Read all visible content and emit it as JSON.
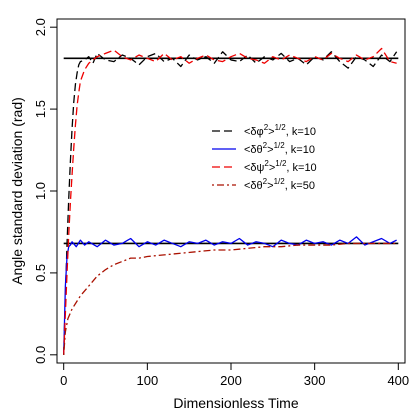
{
  "chart_data": {
    "type": "line",
    "title": "",
    "xlabel": "Dimensionless Time",
    "ylabel": "Angle standard deviation (rad)",
    "xlim": [
      -8,
      408
    ],
    "ylim": [
      -0.05,
      2.05
    ],
    "xticks": [
      0,
      100,
      200,
      300,
      400
    ],
    "yticks": [
      0.0,
      0.5,
      1.0,
      1.5,
      2.0
    ],
    "xtick_labels": [
      "0",
      "100",
      "200",
      "300",
      "400"
    ],
    "ytick_labels": [
      "0.0",
      "0.5",
      "1.0",
      "1.5",
      "2.0"
    ],
    "grid": false,
    "legend_position": "right-middle",
    "reference_lines": [
      {
        "y": 1.81,
        "x_range": [
          0,
          400
        ],
        "color": "#000000"
      },
      {
        "y": 0.68,
        "x_range": [
          0,
          400
        ],
        "color": "#000000"
      }
    ],
    "series": [
      {
        "name_base": "<δφ",
        "name_sup1": "2",
        "name_mid": ">",
        "name_sup2": "1/2",
        "name_tail": ", k=10",
        "color": "#000000",
        "dash": "dashed",
        "x": [
          0,
          2,
          4,
          6,
          8,
          10,
          12,
          14,
          16,
          18,
          20,
          25,
          30,
          35,
          40,
          50,
          60,
          70,
          80,
          90,
          100,
          110,
          120,
          130,
          140,
          150,
          160,
          170,
          180,
          190,
          200,
          210,
          220,
          230,
          240,
          250,
          260,
          270,
          280,
          290,
          300,
          310,
          320,
          330,
          340,
          350,
          360,
          370,
          380,
          390,
          398
        ],
        "y": [
          0.0,
          0.35,
          0.68,
          0.95,
          1.18,
          1.38,
          1.54,
          1.65,
          1.72,
          1.77,
          1.79,
          1.8,
          1.82,
          1.78,
          1.84,
          1.8,
          1.79,
          1.83,
          1.81,
          1.77,
          1.82,
          1.84,
          1.79,
          1.81,
          1.76,
          1.83,
          1.8,
          1.82,
          1.78,
          1.85,
          1.8,
          1.79,
          1.83,
          1.78,
          1.82,
          1.8,
          1.84,
          1.79,
          1.81,
          1.77,
          1.82,
          1.8,
          1.85,
          1.79,
          1.75,
          1.82,
          1.8,
          1.76,
          1.83,
          1.79,
          1.85
        ]
      },
      {
        "name_base": "<δθ",
        "name_sup1": "2",
        "name_mid": ">",
        "name_sup2": "1/2",
        "name_tail": ", k=10",
        "color": "#0000ee",
        "dash": "solid",
        "x": [
          0,
          2,
          4,
          6,
          8,
          10,
          15,
          20,
          25,
          30,
          40,
          50,
          60,
          70,
          80,
          90,
          100,
          110,
          120,
          130,
          140,
          150,
          160,
          170,
          180,
          190,
          200,
          210,
          220,
          230,
          240,
          250,
          260,
          270,
          280,
          290,
          300,
          310,
          320,
          330,
          340,
          350,
          360,
          370,
          380,
          390,
          398
        ],
        "y": [
          0.0,
          0.42,
          0.6,
          0.66,
          0.67,
          0.69,
          0.66,
          0.7,
          0.67,
          0.69,
          0.66,
          0.7,
          0.67,
          0.68,
          0.71,
          0.66,
          0.69,
          0.67,
          0.7,
          0.68,
          0.66,
          0.69,
          0.68,
          0.7,
          0.67,
          0.69,
          0.68,
          0.71,
          0.67,
          0.69,
          0.68,
          0.66,
          0.7,
          0.68,
          0.67,
          0.7,
          0.68,
          0.69,
          0.67,
          0.7,
          0.68,
          0.72,
          0.67,
          0.69,
          0.71,
          0.68,
          0.7
        ]
      },
      {
        "name_base": "<δψ",
        "name_sup1": "2",
        "name_mid": ">",
        "name_sup2": "1/2",
        "name_tail": ", k=10",
        "color": "#ee0000",
        "dash": "dashed",
        "x": [
          0,
          2,
          4,
          6,
          8,
          10,
          12,
          14,
          16,
          18,
          20,
          25,
          30,
          35,
          40,
          50,
          60,
          70,
          80,
          90,
          100,
          110,
          120,
          130,
          140,
          150,
          160,
          170,
          180,
          190,
          200,
          210,
          220,
          230,
          240,
          250,
          260,
          270,
          280,
          290,
          300,
          310,
          320,
          330,
          340,
          350,
          360,
          370,
          380,
          390,
          398
        ],
        "y": [
          0.0,
          0.25,
          0.5,
          0.73,
          0.93,
          1.1,
          1.26,
          1.4,
          1.52,
          1.6,
          1.67,
          1.74,
          1.78,
          1.8,
          1.82,
          1.84,
          1.86,
          1.82,
          1.8,
          1.83,
          1.81,
          1.79,
          1.84,
          1.8,
          1.82,
          1.78,
          1.81,
          1.83,
          1.8,
          1.79,
          1.82,
          1.84,
          1.81,
          1.8,
          1.78,
          1.82,
          1.8,
          1.83,
          1.81,
          1.79,
          1.82,
          1.8,
          1.84,
          1.81,
          1.79,
          1.83,
          1.8,
          1.82,
          1.87,
          1.79,
          1.78
        ]
      },
      {
        "name_base": "<δθ",
        "name_sup1": "2",
        "name_mid": ">",
        "name_sup2": "1/2",
        "name_tail": ", k=50",
        "color": "#aa1100",
        "dash": "dotdash",
        "x": [
          0,
          2,
          5,
          10,
          15,
          20,
          30,
          40,
          50,
          60,
          70,
          80,
          90,
          100,
          120,
          140,
          160,
          180,
          200,
          220,
          240,
          260,
          280,
          300,
          320,
          340,
          360,
          380,
          398
        ],
        "y": [
          0.0,
          0.14,
          0.22,
          0.28,
          0.32,
          0.36,
          0.42,
          0.48,
          0.52,
          0.55,
          0.57,
          0.59,
          0.59,
          0.6,
          0.61,
          0.62,
          0.63,
          0.64,
          0.64,
          0.65,
          0.66,
          0.66,
          0.67,
          0.67,
          0.67,
          0.68,
          0.68,
          0.68,
          0.68
        ]
      }
    ]
  }
}
